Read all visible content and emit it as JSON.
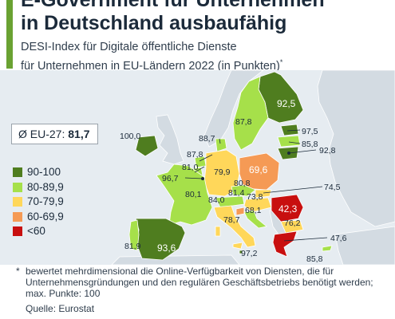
{
  "title": {
    "line1": "E-Government für Unternehmen",
    "line2": "in Deutschland ausbaufähig"
  },
  "subtitle": {
    "line1": "DESI-Index für Digitale öffentliche Dienste",
    "line2": "für Unternehmen in EU-Ländern 2022 (in Punkten)",
    "mark": "*"
  },
  "eu_average": {
    "label": "Ø EU-27:",
    "value": "81,7"
  },
  "legend": [
    {
      "label": "90-100",
      "color": "#4f7d1f"
    },
    {
      "label": "80-89,9",
      "color": "#a6e04a"
    },
    {
      "label": "70-79,9",
      "color": "#ffd75a"
    },
    {
      "label": "60-69,9",
      "color": "#f59a55"
    },
    {
      "label": "<60",
      "color": "#c80f0f"
    }
  ],
  "colors": {
    "accent": "#6aa232",
    "sea": "#e6ecf1",
    "non_eu_land": "#d3dbe2",
    "border": "#ffffff"
  },
  "country_values": {
    "finland": "92,5",
    "sweden": "87,8",
    "estonia": "97,5",
    "latvia": "85,8",
    "lithuania": "92,8",
    "denmark": "88,7",
    "ireland": "100,0",
    "netherlands": "87,8",
    "belgium": "81,0",
    "luxembourg": "96,7",
    "germany": "79,9",
    "poland": "69,6",
    "czechia": "80,8",
    "slovakia": "74,5",
    "austria": "81,4",
    "hungary": "73,8",
    "slovenia": "68,1",
    "france": "80,1",
    "spain": "93,6",
    "portugal": "81,9",
    "italy": "78,7",
    "croatia": "84,0",
    "romania": "42,3",
    "bulgaria": "76,2",
    "greece": "47,6",
    "malta": "97,2",
    "cyprus": "85,8"
  },
  "footnote": {
    "mark": "*",
    "text": "bewertet mehrdimensional die Online-Verfügbarkeit von Diensten, die für Unternehmensgründungen und den regulären Geschäftsbetriebs benötigt werden; max. Punkte: 100"
  },
  "source": "Quelle: Eurostat"
}
